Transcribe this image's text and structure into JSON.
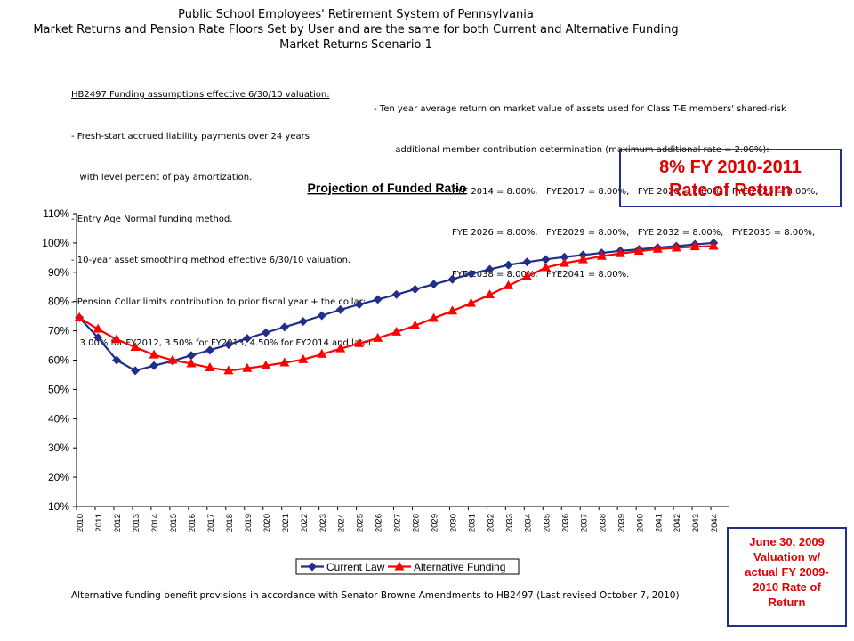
{
  "header": {
    "line1": "Public School Employees' Retirement System of Pennsylvania",
    "line2": "Market Returns and Pension Rate Floors Set by User and are the same for both Current and Alternative Funding",
    "line3": "Market Returns Scenario 1"
  },
  "assumptions": {
    "heading": "HB2497 Funding assumptions effective 6/30/10 valuation:",
    "left": [
      "- Fresh-start accrued liability payments over 24 years",
      "   with level percent of pay amortization.",
      "- Entry Age Normal funding method.",
      "- 10-year asset smoothing method effective 6/30/10 valuation.",
      "- Pension Collar limits contribution to prior fiscal year + the collar:",
      "   3.00% for FY2012, 3.50% for FY2013, 4.50% for FY2014 and later."
    ],
    "right": [
      "- Ten year average return on market value of assets used for Class T-E members' shared-risk",
      "  additional member contribution determination (maximum additional rate = 2.00%):",
      "FYE 2014 = 8.00%,   FYE2017 = 8.00%,   FYE 2020 = 8.00%,   FYE 2023 = 8.00%,",
      "FYE 2026 = 8.00%,   FYE2029 = 8.00%,   FYE 2032 = 8.00%,   FYE2035 = 8.00%,",
      "FYE 2038 = 8.00%,   FYE2041 = 8.00%."
    ]
  },
  "callouts": {
    "rate_of_return": [
      "8% FY 2010-2011",
      "Rate of Return"
    ],
    "valuation": [
      "June 30, 2009",
      "Valuation w/",
      "actual FY 2009-",
      "2010 Rate of",
      "Return"
    ]
  },
  "footer": "Alternative funding benefit provisions in accordance with Senator Browne Amendments to HB2497 (Last revised October 7, 2010)",
  "chart_data": {
    "type": "line",
    "title": "Projection of Funded Ratio",
    "xlabel": "",
    "ylabel": "",
    "ylim": [
      10,
      110
    ],
    "y_ticks": [
      "10%",
      "20%",
      "30%",
      "40%",
      "50%",
      "60%",
      "70%",
      "80%",
      "90%",
      "100%",
      "110%"
    ],
    "grid": false,
    "legend_position": "bottom",
    "categories": [
      "2010",
      "2011",
      "2012",
      "2013",
      "2014",
      "2015",
      "2016",
      "2017",
      "2018",
      "2019",
      "2020",
      "2021",
      "2022",
      "2023",
      "2024",
      "2025",
      "2026",
      "2027",
      "2028",
      "2029",
      "2030",
      "2031",
      "2032",
      "2033",
      "2034",
      "2035",
      "2036",
      "2037",
      "2038",
      "2039",
      "2040",
      "2041",
      "2042",
      "2043",
      "2044"
    ],
    "series": [
      {
        "name": "Current Law",
        "color": "#1f2f8a",
        "marker": "diamond",
        "values": [
          74.5,
          67.7,
          60.0,
          56.4,
          58.1,
          59.7,
          61.6,
          63.4,
          65.3,
          67.4,
          69.4,
          71.3,
          73.2,
          75.2,
          77.2,
          79.0,
          80.7,
          82.4,
          84.2,
          85.9,
          87.6,
          89.5,
          91.0,
          92.5,
          93.5,
          94.4,
          95.2,
          95.9,
          96.6,
          97.3,
          97.8,
          98.4,
          98.9,
          99.5,
          100.0
        ]
      },
      {
        "name": "Alternative Funding",
        "color": "#ff0000",
        "marker": "triangle",
        "values": [
          74.5,
          70.6,
          67.1,
          64.4,
          61.8,
          60.0,
          58.8,
          57.4,
          56.4,
          57.2,
          58.1,
          59.1,
          60.2,
          62.0,
          63.9,
          65.7,
          67.5,
          69.6,
          71.8,
          74.3,
          76.8,
          79.4,
          82.3,
          85.4,
          88.5,
          91.6,
          93.1,
          94.3,
          95.5,
          96.4,
          97.2,
          97.9,
          98.3,
          98.7,
          98.9
        ]
      }
    ]
  }
}
